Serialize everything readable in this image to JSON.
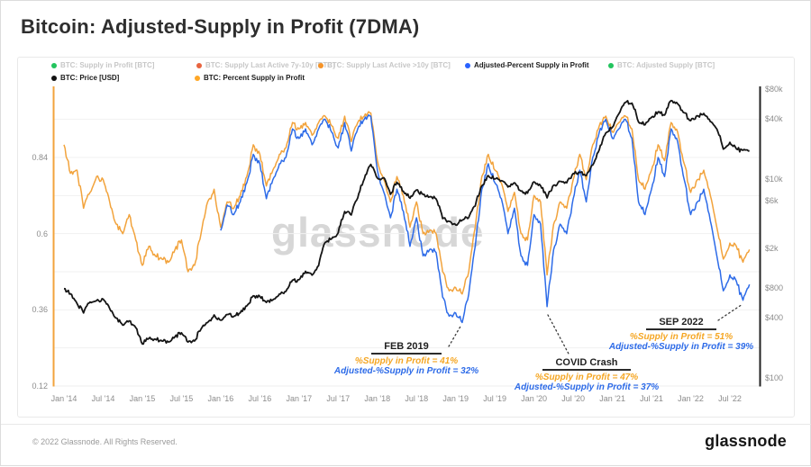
{
  "title": "Bitcoin: Adjusted-Supply in Profit (7DMA)",
  "watermark": "glassnode",
  "footer": {
    "copyright": "© 2022 Glassnode. All Rights Reserved.",
    "logo": "glassnode"
  },
  "legend": {
    "rows": [
      [
        {
          "label": "BTC: Supply in Profit [BTC]",
          "color": "#23C45E",
          "active": false
        },
        {
          "label": "BTC: Supply Last Active 7y-10y [BTC]",
          "color": "#E8643F",
          "active": false
        },
        {
          "label": "BTC: Supply Last Active >10y [BTC]",
          "color": "#F59327",
          "active": false
        },
        {
          "label": "Adjusted-Percent Supply in Profit",
          "color": "#2962FF",
          "active": true
        },
        {
          "label": "BTC: Adjusted Supply [BTC]",
          "color": "#23C45E",
          "active": false
        }
      ],
      [
        {
          "label": "BTC: Price [USD]",
          "color": "#111111",
          "active": true
        },
        {
          "label": "BTC: Percent Supply in Profit",
          "color": "#FFA726",
          "active": true
        }
      ]
    ]
  },
  "chart_data": {
    "type": "line",
    "title": "Bitcoin: Adjusted-Supply in Profit (7DMA)",
    "x_start": "2014-01",
    "x_step": "1 month",
    "x_ticks": [
      "Jan '14",
      "Jul '14",
      "Jan '15",
      "Jul '15",
      "Jan '16",
      "Jul '16",
      "Jan '17",
      "Jul '17",
      "Jan '18",
      "Jul '18",
      "Jan '19",
      "Jul '19",
      "Jan '20",
      "Jul '20",
      "Jan '21",
      "Jul '21",
      "Jan '22",
      "Jul '22"
    ],
    "left_axis": {
      "scale": "linear",
      "range": [
        0.12,
        1.06
      ],
      "ticks": [
        [
          "0.84",
          0.84
        ],
        [
          "0.6",
          0.6
        ],
        [
          "0.36",
          0.36
        ],
        [
          "0.12",
          0.12
        ]
      ],
      "color": "#F2A33C"
    },
    "right_axis": {
      "scale": "log",
      "ticks": [
        [
          "$80k",
          80000
        ],
        [
          "$40k",
          40000
        ],
        [
          "$10k",
          10000
        ],
        [
          "$6k",
          6000
        ],
        [
          "$2k",
          2000
        ],
        [
          "$800",
          800
        ],
        [
          "$400",
          400
        ],
        [
          "$100",
          100
        ]
      ],
      "color": "#222222"
    },
    "grid": "horizontal, every 0.12 of left axis",
    "series": [
      {
        "name": "BTC: Percent Supply in Profit",
        "axis": "left",
        "color": "#F2A33C",
        "start_month_index": 0,
        "values": [
          0.88,
          0.79,
          0.8,
          0.68,
          0.73,
          0.78,
          0.77,
          0.7,
          0.63,
          0.6,
          0.66,
          0.58,
          0.5,
          0.56,
          0.53,
          0.52,
          0.51,
          0.55,
          0.58,
          0.48,
          0.5,
          0.6,
          0.7,
          0.74,
          0.62,
          0.7,
          0.68,
          0.72,
          0.78,
          0.88,
          0.85,
          0.75,
          0.8,
          0.85,
          0.87,
          0.95,
          0.93,
          0.95,
          0.91,
          0.95,
          0.97,
          0.94,
          0.9,
          0.97,
          0.89,
          0.95,
          0.97,
          0.98,
          0.83,
          0.77,
          0.7,
          0.78,
          0.72,
          0.62,
          0.7,
          0.6,
          0.61,
          0.6,
          0.48,
          0.42,
          0.43,
          0.41,
          0.48,
          0.62,
          0.78,
          0.85,
          0.8,
          0.76,
          0.67,
          0.73,
          0.6,
          0.58,
          0.72,
          0.7,
          0.47,
          0.63,
          0.7,
          0.68,
          0.77,
          0.85,
          0.77,
          0.88,
          0.94,
          0.97,
          0.92,
          0.95,
          0.97,
          0.93,
          0.77,
          0.74,
          0.8,
          0.88,
          0.83,
          0.95,
          0.92,
          0.82,
          0.73,
          0.77,
          0.8,
          0.72,
          0.62,
          0.52,
          0.57,
          0.56,
          0.51,
          0.55
        ]
      },
      {
        "name": "Adjusted-Percent Supply in Profit",
        "axis": "left",
        "color": "#2D6BE8",
        "start_month_index": 24,
        "values": [
          0.61,
          0.69,
          0.66,
          0.7,
          0.76,
          0.85,
          0.82,
          0.71,
          0.77,
          0.82,
          0.84,
          0.93,
          0.9,
          0.93,
          0.88,
          0.93,
          0.96,
          0.92,
          0.87,
          0.95,
          0.86,
          0.93,
          0.96,
          0.97,
          0.8,
          0.73,
          0.65,
          0.74,
          0.67,
          0.56,
          0.65,
          0.53,
          0.55,
          0.54,
          0.4,
          0.34,
          0.35,
          0.32,
          0.41,
          0.56,
          0.74,
          0.82,
          0.76,
          0.71,
          0.6,
          0.68,
          0.53,
          0.5,
          0.66,
          0.63,
          0.37,
          0.55,
          0.63,
          0.6,
          0.71,
          0.8,
          0.7,
          0.84,
          0.92,
          0.96,
          0.9,
          0.93,
          0.96,
          0.9,
          0.7,
          0.66,
          0.74,
          0.84,
          0.78,
          0.93,
          0.89,
          0.77,
          0.66,
          0.7,
          0.74,
          0.64,
          0.53,
          0.42,
          0.47,
          0.45,
          0.39,
          0.44
        ]
      },
      {
        "name": "BTC: Price [USD]",
        "axis": "right",
        "color": "#151515",
        "start_month_index": 0,
        "values": [
          790,
          700,
          560,
          450,
          580,
          600,
          620,
          500,
          400,
          340,
          375,
          320,
          220,
          250,
          245,
          235,
          230,
          260,
          285,
          230,
          235,
          310,
          360,
          430,
          380,
          435,
          415,
          450,
          530,
          670,
          660,
          575,
          610,
          700,
          740,
          960,
          970,
          1180,
          1080,
          1350,
          2300,
          2500,
          2870,
          4700,
          4350,
          6450,
          10000,
          14000,
          10200,
          10300,
          7000,
          9250,
          7500,
          6400,
          7750,
          7000,
          6600,
          6300,
          4000,
          3750,
          3450,
          3850,
          4100,
          5350,
          8550,
          10800,
          10000,
          9600,
          8300,
          9150,
          7550,
          7200,
          9350,
          8550,
          6450,
          8650,
          9450,
          9150,
          11350,
          11650,
          10800,
          13800,
          19700,
          29000,
          33100,
          45200,
          58800,
          57750,
          37300,
          35000,
          41600,
          47150,
          43800,
          61300,
          57000,
          46200,
          38500,
          43200,
          45500,
          37650,
          31800,
          19950,
          23300,
          20050,
          19400,
          19200
        ]
      }
    ],
    "annotations": [
      {
        "title": "FEB 2019",
        "line1": "%Supply in Profit = 41%",
        "line2": "Adjusted-%Supply in Profit = 32%"
      },
      {
        "title": "COVID Crash",
        "line1": "%Supply in Profit = 47%",
        "line2": "Adjusted-%Supply in Profit = 37%"
      },
      {
        "title": "SEP 2022",
        "line1": "%Supply in Profit = 51%",
        "line2": "Adjusted-%Supply in Profit = 39%"
      }
    ]
  }
}
